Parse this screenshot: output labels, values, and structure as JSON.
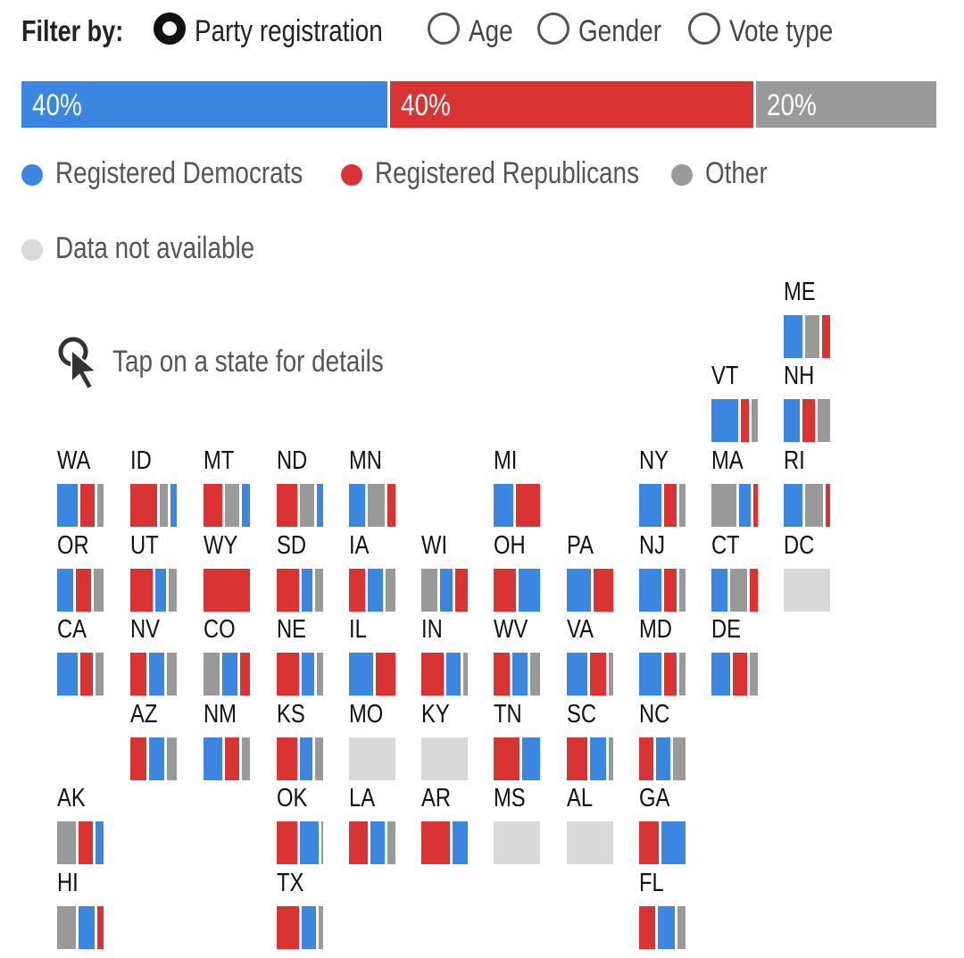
{
  "colors": {
    "dem": "#3a86e0",
    "rep": "#d93333",
    "other": "#999999",
    "na": "#d9d9d9"
  },
  "filter": {
    "label": "Filter by:",
    "options": [
      {
        "label": "Party registration",
        "selected": true
      },
      {
        "label": "Age",
        "selected": false
      },
      {
        "label": "Gender",
        "selected": false
      },
      {
        "label": "Vote type",
        "selected": false
      }
    ]
  },
  "summary": [
    {
      "label": "40%",
      "value": 40,
      "key": "dem"
    },
    {
      "label": "40%",
      "value": 40,
      "key": "rep"
    },
    {
      "label": "20%",
      "value": 20,
      "key": "other"
    }
  ],
  "legend": [
    {
      "label": "Registered Democrats",
      "key": "dem"
    },
    {
      "label": "Registered Republicans",
      "key": "rep"
    },
    {
      "label": "Other",
      "key": "other"
    },
    {
      "label": "Data not available",
      "key": "na"
    }
  ],
  "hint": "Tap on a state for details",
  "states": [
    {
      "abbr": "ME",
      "row": 0,
      "col": 10,
      "segs": [
        [
          "dem",
          45
        ],
        [
          "other",
          35
        ],
        [
          "rep",
          20
        ]
      ]
    },
    {
      "abbr": "VT",
      "row": 1,
      "col": 9,
      "segs": [
        [
          "dem",
          65
        ],
        [
          "rep",
          20
        ],
        [
          "other",
          15
        ]
      ]
    },
    {
      "abbr": "NH",
      "row": 1,
      "col": 10,
      "segs": [
        [
          "dem",
          40
        ],
        [
          "rep",
          30
        ],
        [
          "other",
          30
        ]
      ]
    },
    {
      "abbr": "WA",
      "row": 2,
      "col": 0,
      "segs": [
        [
          "dem",
          50
        ],
        [
          "rep",
          35
        ],
        [
          "other",
          15
        ]
      ]
    },
    {
      "abbr": "ID",
      "row": 2,
      "col": 1,
      "segs": [
        [
          "rep",
          65
        ],
        [
          "other",
          20
        ],
        [
          "dem",
          15
        ]
      ]
    },
    {
      "abbr": "MT",
      "row": 2,
      "col": 2,
      "segs": [
        [
          "rep",
          45
        ],
        [
          "other",
          35
        ],
        [
          "dem",
          20
        ]
      ]
    },
    {
      "abbr": "ND",
      "row": 2,
      "col": 3,
      "segs": [
        [
          "rep",
          50
        ],
        [
          "other",
          35
        ],
        [
          "dem",
          15
        ]
      ]
    },
    {
      "abbr": "MN",
      "row": 2,
      "col": 4,
      "segs": [
        [
          "dem",
          40
        ],
        [
          "other",
          40
        ],
        [
          "rep",
          20
        ]
      ]
    },
    {
      "abbr": "MI",
      "row": 2,
      "col": 6,
      "segs": [
        [
          "dem",
          45
        ],
        [
          "rep",
          55
        ]
      ]
    },
    {
      "abbr": "NY",
      "row": 2,
      "col": 8,
      "segs": [
        [
          "dem",
          55
        ],
        [
          "rep",
          30
        ],
        [
          "other",
          15
        ]
      ]
    },
    {
      "abbr": "MA",
      "row": 2,
      "col": 9,
      "segs": [
        [
          "other",
          60
        ],
        [
          "dem",
          30
        ],
        [
          "rep",
          10
        ]
      ]
    },
    {
      "abbr": "RI",
      "row": 2,
      "col": 10,
      "segs": [
        [
          "dem",
          45
        ],
        [
          "other",
          45
        ],
        [
          "rep",
          10
        ]
      ]
    },
    {
      "abbr": "OR",
      "row": 3,
      "col": 0,
      "segs": [
        [
          "dem",
          40
        ],
        [
          "rep",
          35
        ],
        [
          "other",
          25
        ]
      ]
    },
    {
      "abbr": "UT",
      "row": 3,
      "col": 1,
      "segs": [
        [
          "rep",
          55
        ],
        [
          "dem",
          25
        ],
        [
          "other",
          20
        ]
      ]
    },
    {
      "abbr": "WY",
      "row": 3,
      "col": 2,
      "segs": [
        [
          "rep",
          100
        ]
      ]
    },
    {
      "abbr": "SD",
      "row": 3,
      "col": 3,
      "segs": [
        [
          "rep",
          55
        ],
        [
          "dem",
          25
        ],
        [
          "other",
          20
        ]
      ]
    },
    {
      "abbr": "IA",
      "row": 3,
      "col": 4,
      "segs": [
        [
          "rep",
          40
        ],
        [
          "dem",
          35
        ],
        [
          "other",
          25
        ]
      ]
    },
    {
      "abbr": "WI",
      "row": 3,
      "col": 5,
      "segs": [
        [
          "other",
          40
        ],
        [
          "dem",
          30
        ],
        [
          "rep",
          30
        ]
      ]
    },
    {
      "abbr": "OH",
      "row": 3,
      "col": 6,
      "segs": [
        [
          "rep",
          50
        ],
        [
          "dem",
          50
        ]
      ]
    },
    {
      "abbr": "PA",
      "row": 3,
      "col": 7,
      "segs": [
        [
          "dem",
          55
        ],
        [
          "rep",
          45
        ]
      ]
    },
    {
      "abbr": "NJ",
      "row": 3,
      "col": 8,
      "segs": [
        [
          "dem",
          55
        ],
        [
          "rep",
          30
        ],
        [
          "other",
          15
        ]
      ]
    },
    {
      "abbr": "CT",
      "row": 3,
      "col": 9,
      "segs": [
        [
          "dem",
          40
        ],
        [
          "other",
          40
        ],
        [
          "rep",
          20
        ]
      ]
    },
    {
      "abbr": "DC",
      "row": 3,
      "col": 10,
      "na": true
    },
    {
      "abbr": "CA",
      "row": 4,
      "col": 0,
      "segs": [
        [
          "dem",
          50
        ],
        [
          "rep",
          30
        ],
        [
          "other",
          20
        ]
      ]
    },
    {
      "abbr": "NV",
      "row": 4,
      "col": 1,
      "segs": [
        [
          "rep",
          40
        ],
        [
          "dem",
          35
        ],
        [
          "other",
          25
        ]
      ]
    },
    {
      "abbr": "CO",
      "row": 4,
      "col": 2,
      "segs": [
        [
          "other",
          40
        ],
        [
          "dem",
          35
        ],
        [
          "rep",
          25
        ]
      ]
    },
    {
      "abbr": "NE",
      "row": 4,
      "col": 3,
      "segs": [
        [
          "rep",
          55
        ],
        [
          "dem",
          30
        ],
        [
          "other",
          15
        ]
      ]
    },
    {
      "abbr": "IL",
      "row": 4,
      "col": 4,
      "segs": [
        [
          "dem",
          55
        ],
        [
          "rep",
          45
        ]
      ]
    },
    {
      "abbr": "IN",
      "row": 4,
      "col": 5,
      "segs": [
        [
          "rep",
          55
        ],
        [
          "dem",
          35
        ],
        [
          "other",
          10
        ]
      ]
    },
    {
      "abbr": "WV",
      "row": 4,
      "col": 6,
      "segs": [
        [
          "rep",
          40
        ],
        [
          "dem",
          35
        ],
        [
          "other",
          25
        ]
      ]
    },
    {
      "abbr": "VA",
      "row": 4,
      "col": 7,
      "segs": [
        [
          "dem",
          50
        ],
        [
          "rep",
          40
        ],
        [
          "other",
          10
        ]
      ]
    },
    {
      "abbr": "MD",
      "row": 4,
      "col": 8,
      "segs": [
        [
          "dem",
          55
        ],
        [
          "rep",
          30
        ],
        [
          "other",
          15
        ]
      ]
    },
    {
      "abbr": "DE",
      "row": 4,
      "col": 9,
      "segs": [
        [
          "dem",
          45
        ],
        [
          "rep",
          35
        ],
        [
          "other",
          20
        ]
      ]
    },
    {
      "abbr": "AZ",
      "row": 5,
      "col": 1,
      "segs": [
        [
          "rep",
          40
        ],
        [
          "dem",
          35
        ],
        [
          "other",
          25
        ]
      ]
    },
    {
      "abbr": "NM",
      "row": 5,
      "col": 2,
      "segs": [
        [
          "dem",
          45
        ],
        [
          "rep",
          35
        ],
        [
          "other",
          20
        ]
      ]
    },
    {
      "abbr": "KS",
      "row": 5,
      "col": 3,
      "segs": [
        [
          "rep",
          50
        ],
        [
          "dem",
          30
        ],
        [
          "other",
          20
        ]
      ]
    },
    {
      "abbr": "MO",
      "row": 5,
      "col": 4,
      "na": true
    },
    {
      "abbr": "KY",
      "row": 5,
      "col": 5,
      "na": true
    },
    {
      "abbr": "TN",
      "row": 5,
      "col": 6,
      "segs": [
        [
          "rep",
          60
        ],
        [
          "dem",
          40
        ]
      ]
    },
    {
      "abbr": "SC",
      "row": 5,
      "col": 7,
      "segs": [
        [
          "rep",
          50
        ],
        [
          "dem",
          40
        ],
        [
          "other",
          10
        ]
      ]
    },
    {
      "abbr": "NC",
      "row": 5,
      "col": 8,
      "segs": [
        [
          "rep",
          35
        ],
        [
          "dem",
          35
        ],
        [
          "other",
          30
        ]
      ]
    },
    {
      "abbr": "AK",
      "row": 6,
      "col": 0,
      "segs": [
        [
          "other",
          45
        ],
        [
          "rep",
          35
        ],
        [
          "dem",
          20
        ]
      ]
    },
    {
      "abbr": "OK",
      "row": 6,
      "col": 3,
      "segs": [
        [
          "rep",
          50
        ],
        [
          "dem",
          45
        ],
        [
          "other",
          5
        ]
      ]
    },
    {
      "abbr": "LA",
      "row": 6,
      "col": 4,
      "segs": [
        [
          "rep",
          45
        ],
        [
          "dem",
          35
        ],
        [
          "other",
          20
        ]
      ]
    },
    {
      "abbr": "AR",
      "row": 6,
      "col": 5,
      "segs": [
        [
          "rep",
          65
        ],
        [
          "dem",
          35
        ]
      ]
    },
    {
      "abbr": "MS",
      "row": 6,
      "col": 6,
      "na": true
    },
    {
      "abbr": "AL",
      "row": 6,
      "col": 7,
      "na": true
    },
    {
      "abbr": "GA",
      "row": 6,
      "col": 8,
      "segs": [
        [
          "rep",
          45
        ],
        [
          "dem",
          55
        ]
      ]
    },
    {
      "abbr": "HI",
      "row": 7,
      "col": 0,
      "segs": [
        [
          "other",
          45
        ],
        [
          "dem",
          40
        ],
        [
          "rep",
          15
        ]
      ]
    },
    {
      "abbr": "TX",
      "row": 7,
      "col": 3,
      "segs": [
        [
          "rep",
          55
        ],
        [
          "dem",
          35
        ],
        [
          "other",
          10
        ]
      ]
    },
    {
      "abbr": "FL",
      "row": 7,
      "col": 8,
      "segs": [
        [
          "rep",
          40
        ],
        [
          "dem",
          40
        ],
        [
          "other",
          20
        ]
      ]
    }
  ]
}
